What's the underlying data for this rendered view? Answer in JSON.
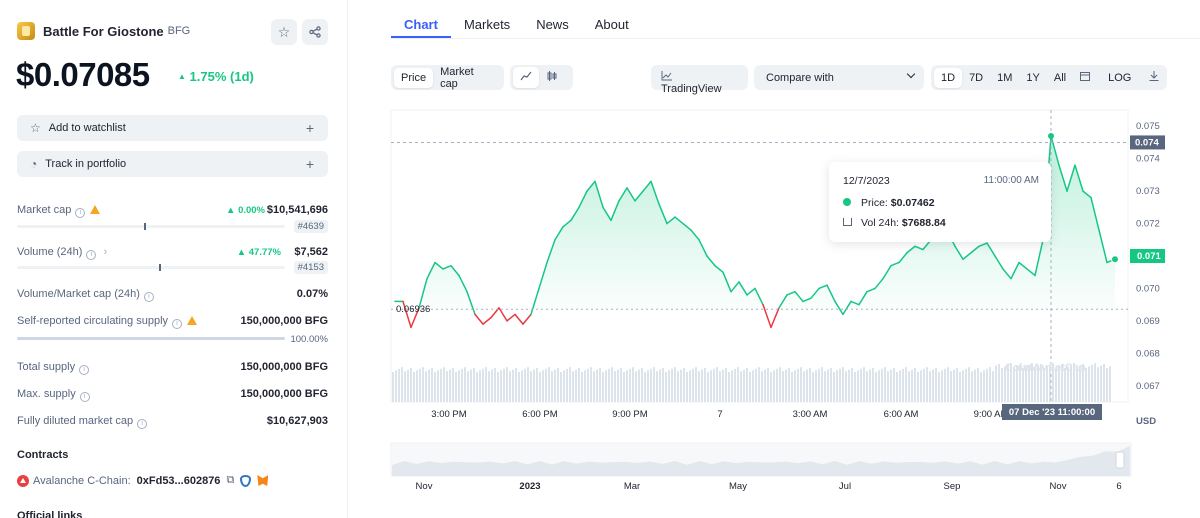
{
  "coin": {
    "name": "Battle For Giostone",
    "symbol": "BFG",
    "price": "$0.07085",
    "change": "1.75% (1d)"
  },
  "actions": {
    "watchlist": "Add to watchlist",
    "portfolio": "Track in portfolio"
  },
  "stats": {
    "market_cap": {
      "label": "Market cap",
      "pct": "0.00%",
      "value": "$10,541,696",
      "rank": "#4639"
    },
    "volume": {
      "label": "Volume (24h)",
      "pct": "47.77%",
      "value": "$7,562",
      "rank": "#4153"
    },
    "vol_mcap": {
      "label": "Volume/Market cap (24h)",
      "value": "0.07%"
    },
    "circ_supply": {
      "label": "Self-reported circulating supply",
      "value": "150,000,000 BFG",
      "pct": "100.00%"
    },
    "total_supply": {
      "label": "Total supply",
      "value": "150,000,000 BFG"
    },
    "max_supply": {
      "label": "Max. supply",
      "value": "150,000,000 BFG"
    },
    "fdmc": {
      "label": "Fully diluted market cap",
      "value": "$10,627,903"
    }
  },
  "contracts": {
    "title": "Contracts",
    "chain": "Avalanche C-Chain:",
    "address": "0xFd53...602876"
  },
  "official_links_title": "Official links",
  "tabs": [
    "Chart",
    "Markets",
    "News",
    "About"
  ],
  "toolbar": {
    "price": "Price",
    "market_cap": "Market cap",
    "tradingview": "TradingView",
    "compare": "Compare with",
    "ranges": [
      "1D",
      "7D",
      "1M",
      "1Y",
      "All"
    ],
    "log": "LOG"
  },
  "tooltip": {
    "date": "12/7/2023",
    "time": "11:00:00 AM",
    "price_label": "Price:",
    "price": "$0.07462",
    "vol_label": "Vol 24h:",
    "vol": "$7688.84"
  },
  "colors": {
    "up": "#16c784",
    "down": "#ea3943",
    "accent": "#3861fb"
  },
  "chart_data": {
    "type": "line",
    "title": "",
    "xlabel": "",
    "ylabel": "USD",
    "ylim": [
      0.0665,
      0.0755
    ],
    "y_ticks": [
      "0.075",
      "0.074",
      "0.073",
      "0.072",
      "0.071",
      "0.070",
      "0.069",
      "0.068",
      "0.067"
    ],
    "x_ticks": [
      "3:00 PM",
      "6:00 PM",
      "9:00 PM",
      "7",
      "3:00 AM",
      "6:00 AM",
      "9:00 AM"
    ],
    "baseline": 0.06936,
    "baseline_label": "0.06936",
    "current_label": "0.071",
    "current": 0.071,
    "crosshair_label": "0.074",
    "crosshair_x_label": "07 Dec '23 11:00:00",
    "nav_ticks": [
      "Nov",
      "2023",
      "Mar",
      "May",
      "Jul",
      "Sep",
      "Nov",
      "6"
    ],
    "series": [
      {
        "values": [
          0.0696,
          0.0696,
          0.0688,
          0.0694,
          0.0703,
          0.0708,
          0.0706,
          0.0707,
          0.0704,
          0.0699,
          0.0692,
          0.0689,
          0.0691,
          0.0694,
          0.069,
          0.0692,
          0.0689,
          0.0692,
          0.07,
          0.0708,
          0.0715,
          0.0719,
          0.0721,
          0.0725,
          0.073,
          0.0733,
          0.0725,
          0.0721,
          0.0727,
          0.0731,
          0.0727,
          0.073,
          0.0733,
          0.0726,
          0.072,
          0.0722,
          0.072,
          0.0718,
          0.0715,
          0.071,
          0.0707,
          0.0705,
          0.0699,
          0.0702,
          0.0698,
          0.07,
          0.0695,
          0.0688,
          0.0694,
          0.0698,
          0.0699,
          0.0696,
          0.0697,
          0.07,
          0.0701,
          0.0696,
          0.0692,
          0.0696,
          0.0695,
          0.0699,
          0.07,
          0.0703,
          0.0707,
          0.0708,
          0.0711,
          0.0713,
          0.0712,
          0.0715,
          0.0719,
          0.0718,
          0.0713,
          0.0709,
          0.0711,
          0.0713,
          0.0714,
          0.071,
          0.0706,
          0.0703,
          0.0708,
          0.0706,
          0.0704,
          0.0715,
          0.0747,
          0.0738,
          0.073,
          0.0738,
          0.073,
          0.0728,
          0.0718,
          0.0708,
          0.0709
        ]
      }
    ]
  }
}
